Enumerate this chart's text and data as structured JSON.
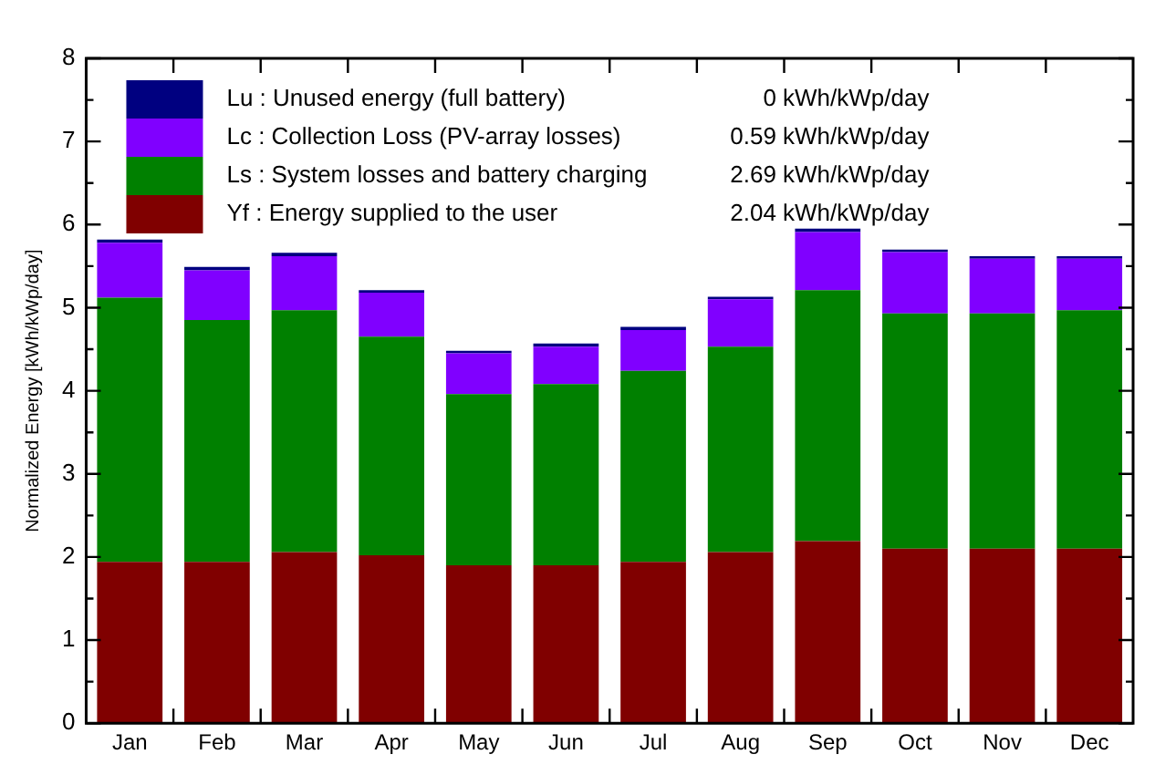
{
  "chart_data": {
    "type": "bar",
    "stacked": true,
    "ylabel": "Normalized Energy [kWh/kWp/day]",
    "categories": [
      "Jan",
      "Feb",
      "Mar",
      "Apr",
      "May",
      "Jun",
      "Jul",
      "Aug",
      "Sep",
      "Oct",
      "Nov",
      "Dec"
    ],
    "series": [
      {
        "name": "Yf : Energy supplied to the user",
        "color": "#800000",
        "values": [
          1.94,
          1.94,
          2.06,
          2.02,
          1.9,
          1.9,
          1.94,
          2.06,
          2.19,
          2.1,
          2.1,
          2.1
        ]
      },
      {
        "name": "Ls : System losses and battery charging",
        "color": "#008000",
        "values": [
          3.18,
          2.91,
          2.91,
          2.63,
          2.06,
          2.18,
          2.3,
          2.47,
          3.02,
          2.83,
          2.83,
          2.87
        ]
      },
      {
        "name": "Lc : Collection Loss (PV-array losses)",
        "color": "#8000ff",
        "values": [
          0.66,
          0.6,
          0.65,
          0.53,
          0.49,
          0.45,
          0.49,
          0.57,
          0.7,
          0.74,
          0.66,
          0.62
        ]
      },
      {
        "name": "Lu : Unused energy (full battery)",
        "color": "#000080",
        "values": [
          0.04,
          0.04,
          0.04,
          0.03,
          0.03,
          0.04,
          0.04,
          0.03,
          0.04,
          0.03,
          0.03,
          0.03
        ]
      }
    ],
    "annotations": [
      "0 kWh/kWp/day",
      "0.59 kWh/kWp/day",
      "2.69 kWh/kWp/day",
      "2.04 kWh/kWp/day"
    ],
    "ylim": [
      0,
      8
    ],
    "yticks": [
      0,
      {
        "value": 0.5,
        "label": null
      },
      1,
      {
        "value": 1.5,
        "label": null
      },
      2,
      {
        "value": 2.5,
        "label": null
      },
      3,
      {
        "value": 3.5,
        "label": null
      },
      4,
      {
        "value": 4.5,
        "label": null
      },
      5,
      {
        "value": 5.5,
        "label": null
      },
      6,
      {
        "value": 6.5,
        "label": null
      },
      7,
      {
        "value": 7.5,
        "label": null
      },
      8
    ],
    "grid": false,
    "legend": "top left"
  }
}
